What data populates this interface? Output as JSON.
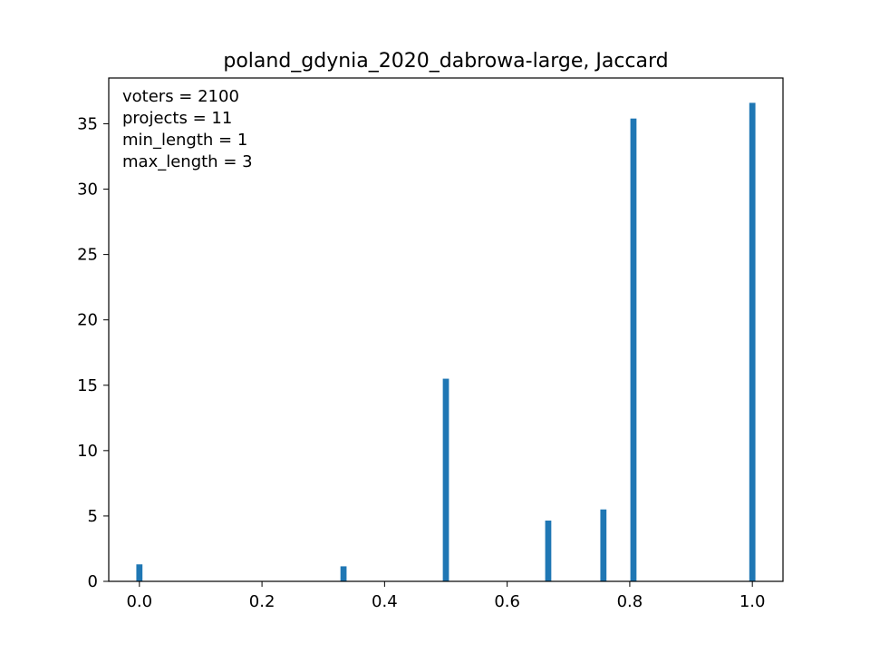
{
  "chart_data": {
    "type": "bar",
    "title": "poland_gdynia_2020_dabrowa-large, Jaccard",
    "xlabel": "",
    "ylabel": "",
    "xlim": [
      -0.05,
      1.05
    ],
    "ylim": [
      0,
      38.5
    ],
    "xticks": [
      0.0,
      0.2,
      0.4,
      0.6,
      0.8,
      1.0
    ],
    "xtick_labels": [
      "0.0",
      "0.2",
      "0.4",
      "0.6",
      "0.8",
      "1.0"
    ],
    "yticks": [
      0,
      5,
      10,
      15,
      20,
      25,
      30,
      35
    ],
    "ytick_labels": [
      "0",
      "5",
      "10",
      "15",
      "20",
      "25",
      "30",
      "35"
    ],
    "bar_width": 0.01,
    "x": [
      0.0,
      0.333,
      0.5,
      0.667,
      0.757,
      0.806,
      1.0
    ],
    "values": [
      1.3,
      1.15,
      15.5,
      4.65,
      5.5,
      35.4,
      36.6
    ],
    "grid": false,
    "annotations": [
      "voters = 2100",
      "projects = 11",
      "min_length = 1",
      "max_length = 3"
    ],
    "colors": {
      "bar": "#1f77b4",
      "axis": "#000000",
      "background": "#ffffff"
    }
  }
}
